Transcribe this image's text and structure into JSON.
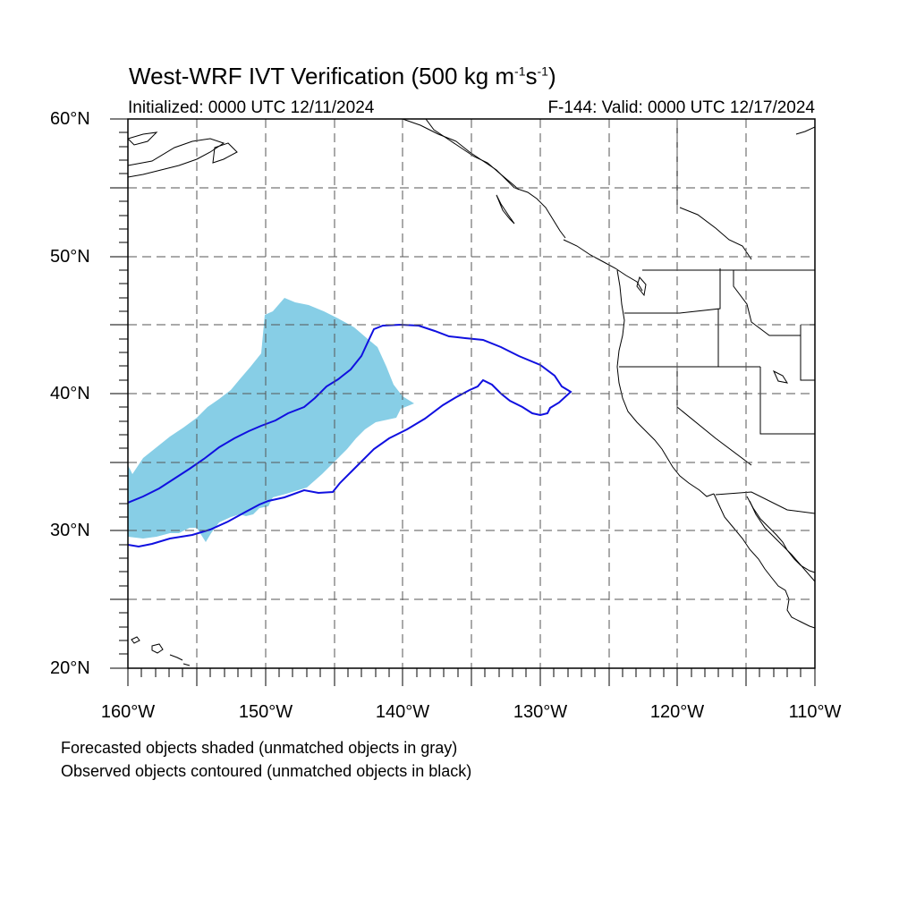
{
  "title": {
    "main": "West-WRF IVT Verification (500 kg m",
    "sup1": "-1",
    "mid": "s",
    "sup2": "-1",
    "end": ")"
  },
  "subtitle": {
    "left": "Initialized: 0000 UTC 12/11/2024",
    "right": "F-144: Valid: 0000 UTC 12/17/2024"
  },
  "axes": {
    "lat_labels": [
      "60°N",
      "50°N",
      "40°N",
      "30°N",
      "20°N"
    ],
    "lon_labels": [
      "160°W",
      "150°W",
      "140°W",
      "130°W",
      "120°W",
      "110°W"
    ],
    "lat_range": [
      20,
      60
    ],
    "lon_range": [
      -160,
      -110
    ],
    "grid": "dashed, every 5 degrees"
  },
  "legend": {
    "line1": "Forecasted objects shaded (unmatched objects in gray)",
    "line2": "Observed objects contoured (unmatched objects in black)"
  },
  "colors": {
    "forecast_fill": "#87CEE6",
    "observed_contour": "#1010E0",
    "coastline": "#000000",
    "grid": "#555555"
  }
}
